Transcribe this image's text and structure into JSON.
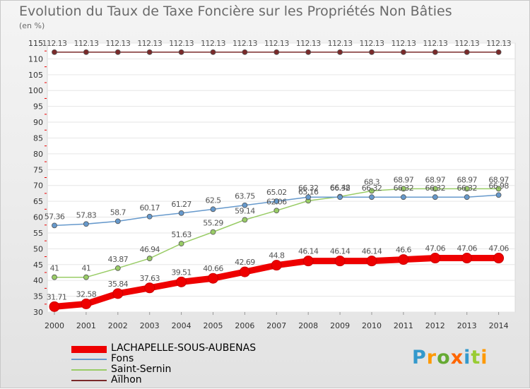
{
  "title": "Evolution du Taux de Taxe Foncière sur les Propriétés Non Bâties",
  "unit": "(en %)",
  "logo": "Proxiti",
  "chart_data": {
    "type": "line",
    "x": [
      "2000",
      "2001",
      "2002",
      "2003",
      "2004",
      "2005",
      "2006",
      "2007",
      "2008",
      "2009",
      "2010",
      "2011",
      "2012",
      "2013",
      "2014"
    ],
    "ylim": [
      30,
      115
    ],
    "yticks": [
      30,
      35,
      40,
      45,
      50,
      55,
      60,
      65,
      70,
      75,
      80,
      85,
      90,
      95,
      100,
      105,
      110,
      115
    ],
    "legend_position": "bottom-left",
    "series": [
      {
        "name": "LACHAPELLE-SOUS-AUBENAS",
        "color": "#ee0000",
        "values": [
          31.71,
          32.58,
          35.84,
          37.63,
          39.51,
          40.66,
          42.69,
          44.8,
          46.14,
          46.14,
          46.14,
          46.6,
          47.06,
          47.06,
          47.06
        ],
        "labels": [
          "31.71",
          "32.58",
          "35.84",
          "37.63",
          "39.51",
          "40.66",
          "42.69",
          "44.8",
          "46.14",
          "46.14",
          "46.14",
          "46.6",
          "47.06",
          "47.06",
          "47.06"
        ]
      },
      {
        "name": "Fons",
        "color": "#6699cc",
        "values": [
          57.36,
          57.83,
          58.7,
          60.17,
          61.27,
          62.5,
          63.75,
          65.02,
          66.32,
          66.32,
          66.32,
          66.32,
          66.32,
          66.32,
          66.98
        ],
        "labels": [
          "57.36",
          "57.83",
          "58.7",
          "60.17",
          "61.27",
          "62.5",
          "63.75",
          "65.02",
          "66.32",
          "66.32",
          "66.32",
          "66.32",
          "66.32",
          "66.32",
          "66.98"
        ]
      },
      {
        "name": "Saint-Sernin",
        "color": "#99cc66",
        "values": [
          41,
          41,
          43.87,
          46.94,
          51.63,
          55.29,
          59.14,
          62.06,
          65.16,
          66.48,
          68.3,
          68.97,
          68.97,
          68.97,
          68.97
        ],
        "labels": [
          "41",
          "41",
          "43.87",
          "46.94",
          "51.63",
          "55.29",
          "59.14",
          "62.06",
          "65.16",
          "66.48",
          "68.3",
          "68.97",
          "68.97",
          "68.97",
          "68.97"
        ]
      },
      {
        "name": "Aïlhon",
        "color": "#7a2a2a",
        "values": [
          112.13,
          112.13,
          112.13,
          112.13,
          112.13,
          112.13,
          112.13,
          112.13,
          112.13,
          112.13,
          112.13,
          112.13,
          112.13,
          112.13,
          112.13
        ],
        "labels": [
          "112.13",
          "112.13",
          "112.13",
          "112.13",
          "112.13",
          "112.13",
          "112.13",
          "112.13",
          "112.13",
          "112.13",
          "112.13",
          "112.13",
          "112.13",
          "112.13",
          "112.13"
        ]
      }
    ]
  }
}
